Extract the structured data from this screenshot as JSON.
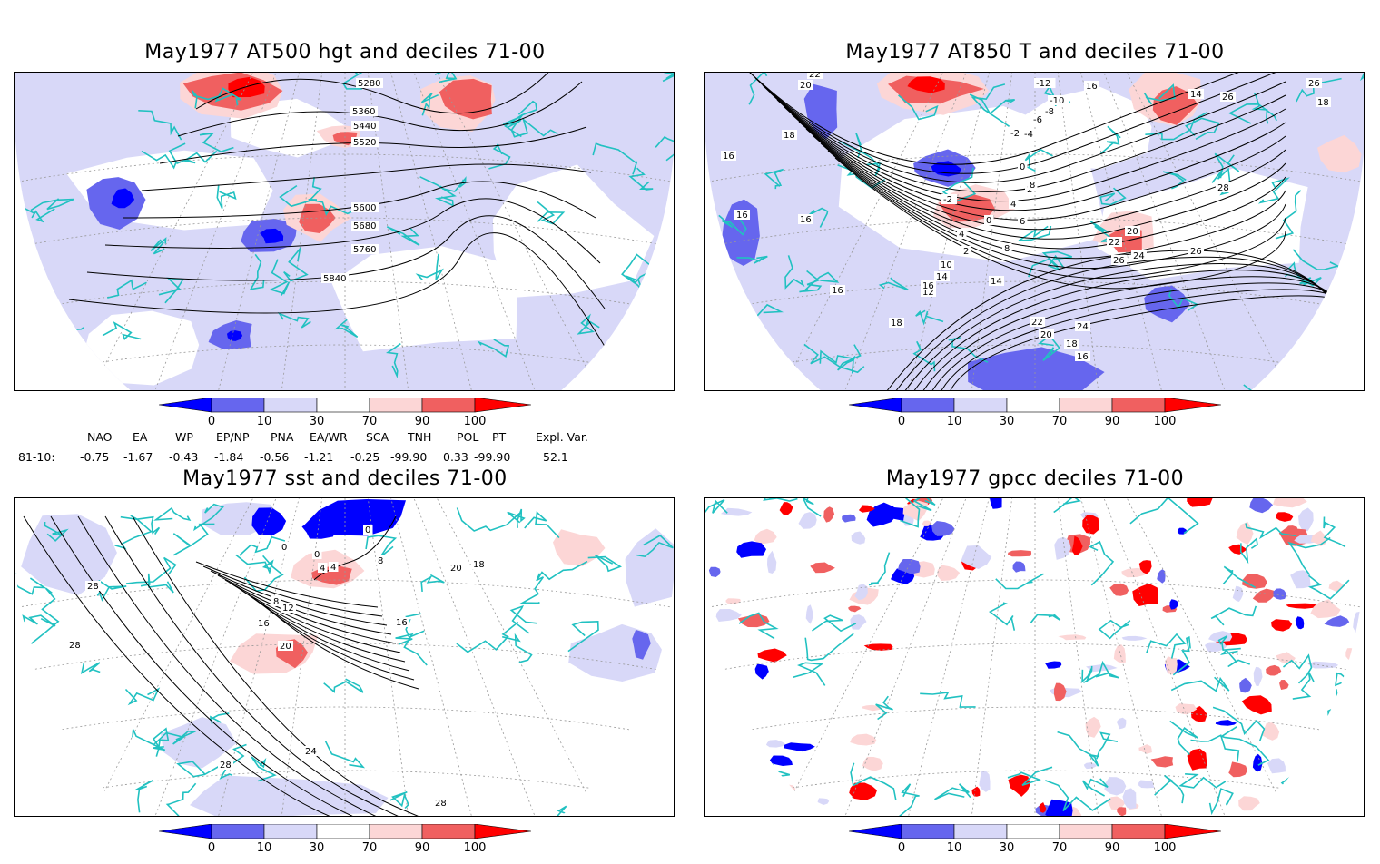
{
  "panels": [
    {
      "id": "hgt500",
      "title": "May1977 AT500 hgt and deciles 71-00",
      "contour_labels": [
        "5280",
        "5360",
        "5440",
        "5520",
        "5600",
        "5680",
        "5760",
        "5840"
      ]
    },
    {
      "id": "t850",
      "title": "May1977 AT850 T and deciles 71-00",
      "contour_labels": [
        "22",
        "20",
        "18",
        "16",
        "16",
        "16",
        "16",
        "14",
        "12",
        "10",
        "8",
        "6",
        "4",
        "2",
        "0",
        "-2",
        "-4",
        "-6",
        "-8",
        "-10",
        "-12",
        "14",
        "16",
        "26",
        "26",
        "28",
        "18",
        "20",
        "22",
        "24",
        "26",
        "26",
        "24",
        "22",
        "20",
        "18",
        "16",
        "18",
        "14",
        "16",
        "4",
        "2",
        "0",
        "-2",
        "8"
      ]
    },
    {
      "id": "sst",
      "title": "May1977 sst and deciles 71-00",
      "contour_labels": [
        "0",
        "0",
        "0",
        "4",
        "4",
        "8",
        "8",
        "12",
        "16",
        "16",
        "20",
        "18",
        "28",
        "28",
        "20",
        "24",
        "28",
        "28"
      ]
    },
    {
      "id": "gpcc",
      "title": "May1977 gpcc deciles 71-00",
      "contour_labels": []
    }
  ],
  "colorbar": {
    "ticks": [
      "0",
      "10",
      "30",
      "70",
      "90",
      "100"
    ],
    "colors": [
      "#0000ff",
      "#6666ee",
      "#d8d8f8",
      "#ffffff",
      "#fcd6d6",
      "#f06060",
      "#ff0000"
    ]
  },
  "indices": {
    "row_label": "81-10:",
    "headers": [
      "NAO",
      "EA",
      "WP",
      "EP/NP",
      "PNA",
      "EA/WR",
      "SCA",
      "TNH",
      "POL",
      "PT",
      "Expl. Var."
    ],
    "values": [
      "-0.75",
      "-1.67",
      "-0.43",
      "-1.84",
      "-0.56",
      "-1.21",
      "-0.25",
      "-99.90",
      "0.33",
      "-99.90",
      "52.1"
    ]
  },
  "colors": {
    "coast": "#21c1c1",
    "contour": "#000000",
    "grid": "#999999"
  }
}
